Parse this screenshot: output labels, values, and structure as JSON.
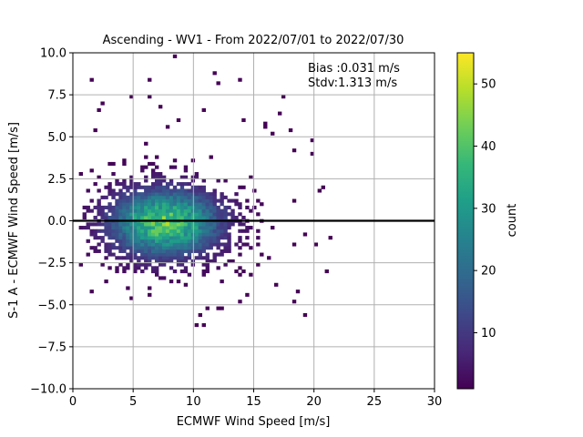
{
  "chart_data": {
    "type": "heatmap",
    "title": "Ascending - WV1 - From 2022/07/01 to 2022/07/30",
    "xlabel": "ECMWF Wind Speed [m/s]",
    "ylabel": "S-1 A - ECMWF Wind Speed [m/s]",
    "xlim": [
      0,
      30
    ],
    "ylim": [
      -10,
      10
    ],
    "x_ticks": [
      "0",
      "5",
      "10",
      "15",
      "20",
      "25",
      "30"
    ],
    "y_ticks": [
      "−10.0",
      "−7.5",
      "−5.0",
      "−2.5",
      "0.0",
      "2.5",
      "5.0",
      "7.5",
      "10.0"
    ],
    "grid": true,
    "zero_line_y": 0,
    "annotation_lines": [
      "Bias :0.031 m/s",
      "Stdv:1.313 m/s"
    ],
    "colorbar": {
      "label": "count",
      "range": [
        1,
        55
      ],
      "ticks": [
        "10",
        "20",
        "30",
        "40",
        "50"
      ],
      "colormap": "viridis"
    },
    "density_model": {
      "center_x": 7.5,
      "center_y": -0.2,
      "sigma_x": 3.0,
      "sigma_y": 1.3,
      "peak_count": 50,
      "x_extent": [
        0.5,
        21.5
      ],
      "y_extent": [
        -6.5,
        9.8
      ],
      "bin_x": 0.3,
      "bin_y": 0.2
    }
  },
  "colors": {
    "grid": "#b0b0b0",
    "zero_line": "#000000",
    "viridis": [
      "#440154",
      "#482878",
      "#3e4989",
      "#31688e",
      "#26828e",
      "#1f9e89",
      "#35b779",
      "#6ece58",
      "#b5de2b",
      "#fde725"
    ]
  }
}
